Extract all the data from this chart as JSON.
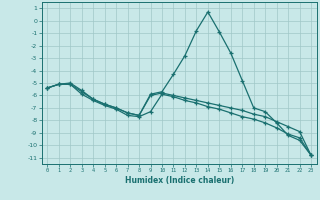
{
  "xlabel": "Humidex (Indice chaleur)",
  "bg_color": "#c8e8e8",
  "grid_color": "#a0c8c8",
  "line_color": "#1a7070",
  "xlim": [
    -0.5,
    23.5
  ],
  "ylim": [
    -11.5,
    1.5
  ],
  "xticks": [
    0,
    1,
    2,
    3,
    4,
    5,
    6,
    7,
    8,
    9,
    10,
    11,
    12,
    13,
    14,
    15,
    16,
    17,
    18,
    19,
    20,
    21,
    22,
    23
  ],
  "yticks": [
    1,
    0,
    -1,
    -2,
    -3,
    -4,
    -5,
    -6,
    -7,
    -8,
    -9,
    -10,
    -11
  ],
  "line1_x": [
    0,
    1,
    2,
    3,
    4,
    5,
    6,
    7,
    8,
    9,
    10,
    11,
    12,
    13,
    14,
    15,
    16,
    17,
    18,
    19,
    20,
    21,
    22,
    23
  ],
  "line1_y": [
    -5.4,
    -5.1,
    -5.0,
    -5.6,
    -6.3,
    -6.7,
    -7.0,
    -7.4,
    -7.6,
    -5.9,
    -5.7,
    -4.3,
    -2.8,
    -0.8,
    0.7,
    -0.9,
    -2.6,
    -4.8,
    -7.0,
    -7.3,
    -8.2,
    -9.2,
    -9.6,
    -10.8
  ],
  "line2_x": [
    0,
    1,
    2,
    3,
    4,
    5,
    6,
    7,
    8,
    9,
    10,
    11,
    12,
    13,
    14,
    15,
    16,
    17,
    18,
    19,
    20,
    21,
    22,
    23
  ],
  "line2_y": [
    -5.4,
    -5.1,
    -5.1,
    -5.7,
    -6.3,
    -6.7,
    -7.0,
    -7.4,
    -7.6,
    -6.0,
    -5.8,
    -6.0,
    -6.2,
    -6.4,
    -6.6,
    -6.8,
    -7.0,
    -7.2,
    -7.5,
    -7.7,
    -8.1,
    -8.5,
    -8.9,
    -10.8
  ],
  "line3_x": [
    0,
    1,
    2,
    3,
    4,
    5,
    6,
    7,
    8,
    9,
    10,
    11,
    12,
    13,
    14,
    15,
    16,
    17,
    18,
    19,
    20,
    21,
    22,
    23
  ],
  "line3_y": [
    -5.4,
    -5.1,
    -5.1,
    -5.9,
    -6.4,
    -6.8,
    -7.1,
    -7.6,
    -7.7,
    -7.3,
    -5.9,
    -6.1,
    -6.4,
    -6.6,
    -6.9,
    -7.1,
    -7.4,
    -7.7,
    -7.9,
    -8.2,
    -8.6,
    -9.1,
    -9.4,
    -10.8
  ]
}
